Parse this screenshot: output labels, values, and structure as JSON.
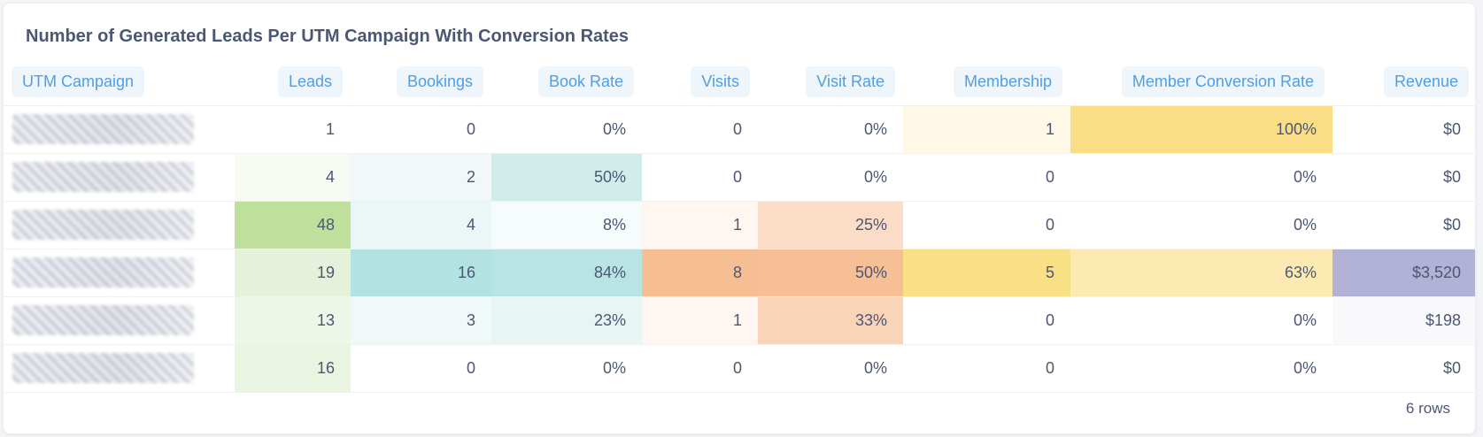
{
  "title": "Number of Generated Leads Per UTM Campaign With Conversion Rates",
  "columns": [
    "UTM Campaign",
    "Leads",
    "Bookings",
    "Book Rate",
    "Visits",
    "Visit Rate",
    "Membership",
    "Member Conversion Rate",
    "Revenue"
  ],
  "rows": [
    {
      "campaign": "",
      "leads": "1",
      "bookings": "0",
      "book_rate": "0%",
      "visits": "0",
      "visit_rate": "0%",
      "membership": "1",
      "member_rate": "100%",
      "revenue": "$0"
    },
    {
      "campaign": "",
      "leads": "4",
      "bookings": "2",
      "book_rate": "50%",
      "visits": "0",
      "visit_rate": "0%",
      "membership": "0",
      "member_rate": "0%",
      "revenue": "$0"
    },
    {
      "campaign": "",
      "leads": "48",
      "bookings": "4",
      "book_rate": "8%",
      "visits": "1",
      "visit_rate": "25%",
      "membership": "0",
      "member_rate": "0%",
      "revenue": "$0"
    },
    {
      "campaign": "",
      "leads": "19",
      "bookings": "16",
      "book_rate": "84%",
      "visits": "8",
      "visit_rate": "50%",
      "membership": "5",
      "member_rate": "63%",
      "revenue": "$3,520"
    },
    {
      "campaign": "",
      "leads": "13",
      "bookings": "3",
      "book_rate": "23%",
      "visits": "1",
      "visit_rate": "33%",
      "membership": "0",
      "member_rate": "0%",
      "revenue": "$198"
    },
    {
      "campaign": "",
      "leads": "16",
      "bookings": "0",
      "book_rate": "0%",
      "visits": "0",
      "visit_rate": "0%",
      "membership": "0",
      "member_rate": "0%",
      "revenue": "$0"
    }
  ],
  "cell_colors": [
    [
      "#ffffff",
      "#ffffff",
      "#ffffff",
      "#ffffff",
      "#ffffff",
      "#ffffff",
      "#fff8e6",
      "#f9de86",
      "#ffffff"
    ],
    [
      "#ffffff",
      "#f8fbf4",
      "#f0f8f8",
      "#d0edec",
      "#ffffff",
      "#ffffff",
      "#ffffff",
      "#ffffff",
      "#ffffff"
    ],
    [
      "#ffffff",
      "#bfdf9c",
      "#ebf6f6",
      "#f6fbfb",
      "#fef6f1",
      "#fadcc7",
      "#ffffff",
      "#ffffff",
      "#ffffff"
    ],
    [
      "#ffffff",
      "#e5f1da",
      "#b2e2e1",
      "#b8e4e3",
      "#f6be93",
      "#f6bf96",
      "#f9df86",
      "#fdeab2",
      "#b1b2d6"
    ],
    [
      "#ffffff",
      "#eef6e8",
      "#f0f8f8",
      "#e8f5f5",
      "#fef6f1",
      "#f9d4b9",
      "#ffffff",
      "#ffffff",
      "#f9f9fc"
    ],
    [
      "#ffffff",
      "#e9f4e1",
      "#ffffff",
      "#ffffff",
      "#ffffff",
      "#ffffff",
      "#ffffff",
      "#ffffff",
      "#ffffff"
    ]
  ],
  "footer": {
    "row_count": "6 rows"
  },
  "colors": {
    "accent": "#509ee3",
    "header_pill_bg": "#eef6fc",
    "text": "#4c5773"
  }
}
